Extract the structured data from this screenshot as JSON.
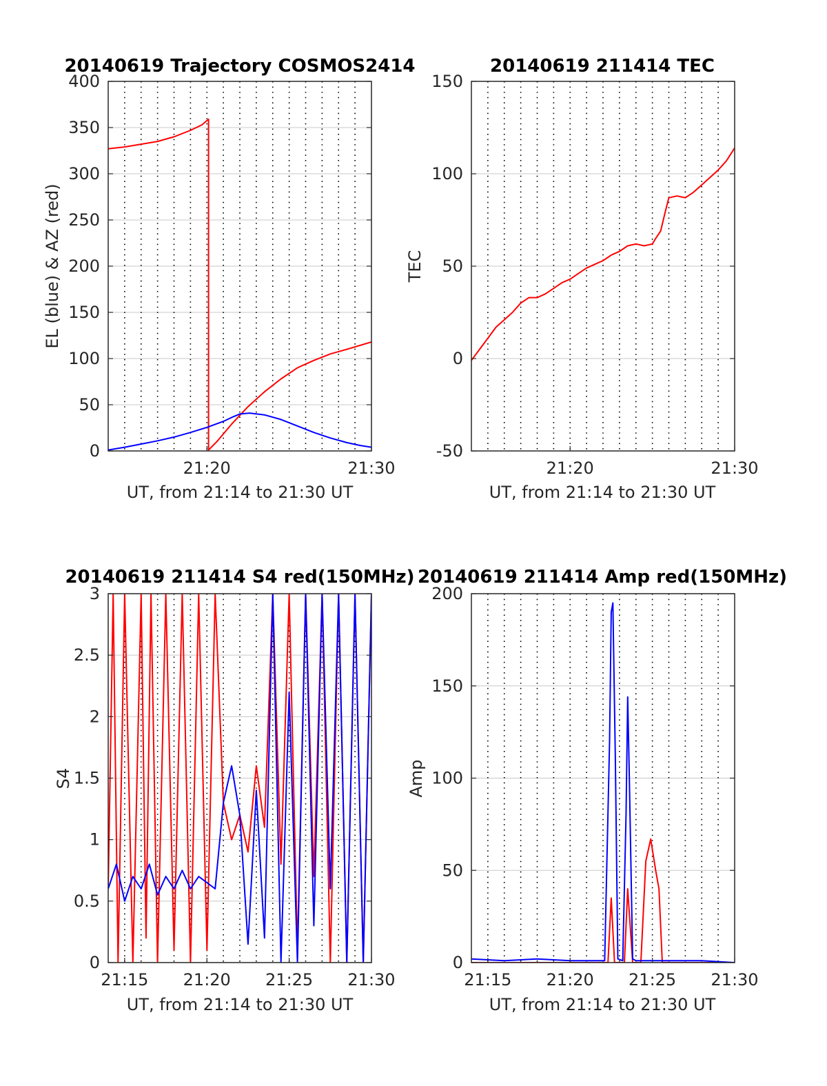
{
  "colors": {
    "el": "#0000ff",
    "az": "#ff0000",
    "tec": "#ff0000",
    "red": "#ff0000",
    "blue": "#0000ff",
    "grid": "#c8c8c8",
    "dots": "#000000"
  },
  "chart_data": [
    {
      "type": "line",
      "title": "20140619 Trajectory COSMOS2414",
      "xlabel": "UT, from 21:14 to 21:30 UT",
      "ylabel": "EL (blue) & AZ (red)",
      "xlim": [
        0,
        16
      ],
      "ylim": [
        0,
        400
      ],
      "xticks": [
        {
          "v": 6,
          "label": "21:20"
        },
        {
          "v": 16,
          "label": "21:30"
        }
      ],
      "yticks": [
        0,
        50,
        100,
        150,
        200,
        250,
        300,
        350,
        400
      ],
      "series": [
        {
          "key": "az",
          "color": "#ff0000",
          "x": [
            0,
            1,
            2,
            3,
            4,
            5,
            5.7,
            6.1,
            6.1,
            6.6,
            7.5,
            8.5,
            9.5,
            10.5,
            11.5,
            12.5,
            13.5,
            14.5,
            16
          ],
          "y": [
            327,
            329,
            332,
            335,
            340,
            347,
            353,
            359,
            1,
            10,
            29,
            48,
            64,
            78,
            90,
            98,
            105,
            110,
            118
          ]
        },
        {
          "key": "el",
          "color": "#0000ff",
          "x": [
            0,
            1,
            2,
            3,
            4,
            5,
            6,
            7,
            7.6,
            8,
            8.6,
            9.5,
            10.5,
            11.5,
            12.5,
            13.5,
            14.5,
            15.3,
            16
          ],
          "y": [
            1,
            4,
            7.5,
            11,
            15,
            20,
            25.5,
            32,
            37,
            40,
            41,
            39,
            34,
            27,
            20,
            14,
            9,
            6,
            4
          ]
        }
      ]
    },
    {
      "type": "line",
      "title": "20140619 211414 TEC",
      "xlabel": "UT, from 21:14 to 21:30 UT",
      "ylabel": "TEC",
      "xlim": [
        0,
        16
      ],
      "ylim": [
        -50,
        150
      ],
      "xticks": [
        {
          "v": 6,
          "label": "21:20"
        },
        {
          "v": 16,
          "label": "21:30"
        }
      ],
      "yticks": [
        -50,
        0,
        50,
        100,
        150
      ],
      "series": [
        {
          "key": "tec",
          "color": "#ff0000",
          "x": [
            0,
            0.5,
            1,
            1.5,
            2,
            2.5,
            3,
            3.5,
            4,
            4.5,
            5,
            5.5,
            6,
            6.5,
            7,
            7.5,
            8,
            8.5,
            9,
            9.5,
            10,
            10.5,
            11,
            11.2,
            11.5,
            11.8,
            12,
            12.5,
            13,
            13.5,
            14,
            14.5,
            15,
            15.5,
            16
          ],
          "y": [
            -1,
            5,
            11,
            17,
            21,
            25,
            30,
            33,
            33,
            35,
            38,
            41,
            43,
            46,
            49,
            51,
            53,
            56,
            58,
            61,
            62,
            61,
            62,
            65,
            69,
            80,
            87,
            88,
            87,
            90,
            94,
            98,
            102,
            107,
            114
          ]
        }
      ]
    },
    {
      "type": "line",
      "title": "20140619 211414 S4 red(150MHz)",
      "xlabel": "UT, from 21:14 to 21:30 UT",
      "ylabel": "S4",
      "xlim": [
        0,
        16
      ],
      "ylim": [
        0,
        3
      ],
      "xticks": [
        {
          "v": 1,
          "label": "21:15"
        },
        {
          "v": 6,
          "label": "21:20"
        },
        {
          "v": 11,
          "label": "21:25"
        },
        {
          "v": 16,
          "label": "21:30"
        }
      ],
      "yticks": [
        0,
        0.5,
        1,
        1.5,
        2,
        2.5,
        3
      ],
      "series": [
        {
          "key": "s4_red",
          "color": "#ff0000",
          "x": [
            0,
            0.3,
            0.6,
            1,
            1.5,
            2,
            2.3,
            2.6,
            3,
            3.5,
            4,
            4.5,
            5,
            5.5,
            6,
            6.5,
            7,
            7.5,
            8,
            8.5,
            9,
            9.5,
            10,
            10.5,
            11,
            11.5,
            12,
            12.5,
            13,
            13.5,
            14,
            14.5,
            15,
            15.5,
            16
          ],
          "y": [
            0.6,
            3,
            0,
            3,
            0,
            3,
            0.2,
            3,
            0,
            3,
            0.1,
            3,
            0,
            3,
            0.1,
            3,
            1.3,
            1.0,
            1.2,
            0.9,
            1.6,
            1.1,
            3,
            0.8,
            3,
            0.1,
            3,
            0.7,
            3,
            0,
            3,
            0,
            3,
            0,
            3
          ]
        },
        {
          "key": "s4_blue",
          "color": "#0000ff",
          "x": [
            0,
            0.5,
            1,
            1.5,
            2,
            2.5,
            3,
            3.5,
            4,
            4.5,
            5,
            5.5,
            6,
            6.5,
            7,
            7.5,
            8,
            8.5,
            9,
            9.5,
            10,
            10.5,
            11,
            11.5,
            12,
            12.5,
            13,
            13.5,
            14,
            14.5,
            15,
            15.5,
            16
          ],
          "y": [
            0.6,
            0.8,
            0.5,
            0.7,
            0.6,
            0.8,
            0.55,
            0.7,
            0.6,
            0.75,
            0.6,
            0.7,
            0.65,
            0.6,
            1.3,
            1.6,
            1.2,
            0.15,
            1.4,
            0.2,
            3,
            0,
            2.2,
            0,
            3,
            0.3,
            3,
            0.6,
            3,
            0,
            3,
            0,
            3
          ]
        }
      ]
    },
    {
      "type": "line",
      "title": "20140619 211414 Amp red(150MHz)",
      "xlabel": "UT, from 21:14 to 21:30 UT",
      "ylabel": "Amp",
      "xlim": [
        0,
        16
      ],
      "ylim": [
        0,
        200
      ],
      "xticks": [
        {
          "v": 1,
          "label": "21:15"
        },
        {
          "v": 6,
          "label": "21:20"
        },
        {
          "v": 11,
          "label": "21:25"
        },
        {
          "v": 16,
          "label": "21:30"
        }
      ],
      "yticks": [
        0,
        50,
        100,
        150,
        200
      ],
      "series": [
        {
          "key": "amp_red",
          "color": "#ff0000",
          "x": [
            0,
            8.0,
            8.3,
            8.5,
            8.7,
            9.0,
            9.3,
            9.5,
            9.8,
            10.0,
            10.3,
            10.6,
            10.9,
            11.2,
            11.4,
            11.6,
            12,
            16
          ],
          "y": [
            0,
            0,
            0,
            35,
            0,
            0,
            0,
            40,
            0,
            0,
            0,
            55,
            67,
            50,
            40,
            0,
            0,
            0
          ]
        },
        {
          "key": "amp_blue",
          "color": "#0000ff",
          "x": [
            0,
            2,
            4,
            6,
            7.8,
            8.1,
            8.4,
            8.5,
            8.6,
            8.75,
            8.9,
            9.2,
            9.4,
            9.5,
            9.6,
            9.8,
            10.0,
            12,
            14,
            16
          ],
          "y": [
            2,
            1,
            2,
            1,
            1,
            1,
            120,
            190,
            195,
            110,
            2,
            1,
            80,
            144,
            100,
            2,
            1,
            1,
            1,
            0
          ]
        }
      ]
    }
  ]
}
